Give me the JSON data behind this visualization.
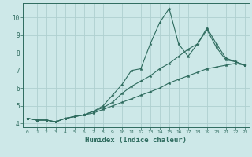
{
  "xlabel": "Humidex (Indice chaleur)",
  "x": [
    0,
    1,
    2,
    3,
    4,
    5,
    6,
    7,
    8,
    9,
    10,
    11,
    12,
    13,
    14,
    15,
    16,
    17,
    18,
    19,
    20,
    21,
    22,
    23
  ],
  "y_spike": [
    4.3,
    4.2,
    4.2,
    4.1,
    4.3,
    4.4,
    4.5,
    4.7,
    5.0,
    5.6,
    6.2,
    7.0,
    7.1,
    8.5,
    9.7,
    10.5,
    8.5,
    7.8,
    8.5,
    9.4,
    8.5,
    7.7,
    7.5,
    7.3
  ],
  "y_mid": [
    4.3,
    4.2,
    4.2,
    4.1,
    4.3,
    4.4,
    4.5,
    4.7,
    4.9,
    5.2,
    5.7,
    6.1,
    6.4,
    6.7,
    7.1,
    7.4,
    7.8,
    8.2,
    8.5,
    9.3,
    8.3,
    7.6,
    7.5,
    7.3
  ],
  "y_low": [
    4.3,
    4.2,
    4.2,
    4.1,
    4.3,
    4.4,
    4.5,
    4.6,
    4.8,
    5.0,
    5.2,
    5.4,
    5.6,
    5.8,
    6.0,
    6.3,
    6.5,
    6.7,
    6.9,
    7.1,
    7.2,
    7.3,
    7.4,
    7.3
  ],
  "line_color": "#2e6b5e",
  "bg_color": "#cde8e8",
  "grid_color": "#afd0d0",
  "ylim": [
    3.8,
    10.8
  ],
  "yticks": [
    4,
    5,
    6,
    7,
    8,
    9,
    10
  ],
  "xlim": [
    -0.5,
    23.5
  ]
}
